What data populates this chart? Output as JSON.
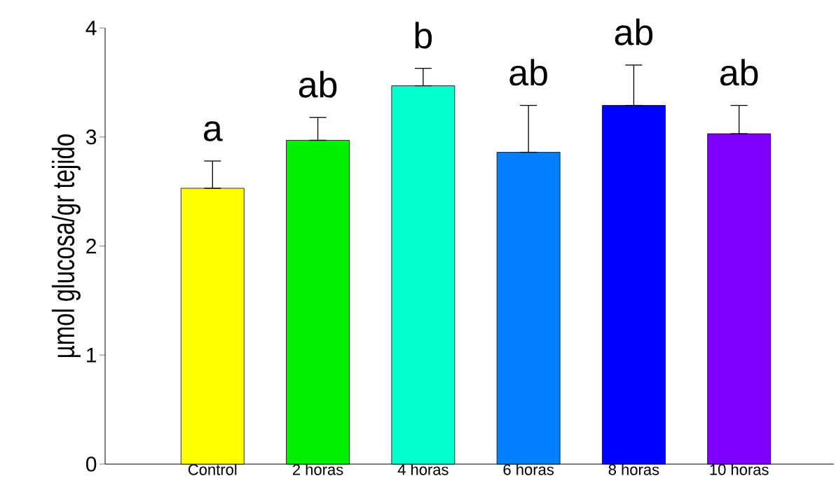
{
  "chart_data": {
    "type": "bar",
    "ylabel": "µmol glucosa/gr tejido",
    "categories": [
      "Control",
      "2 horas",
      "4 horas",
      "6 horas",
      "8 horas",
      "10 horas"
    ],
    "values": [
      2.53,
      2.97,
      3.47,
      2.86,
      3.29,
      3.03
    ],
    "colors": [
      "#ffff00",
      "#00ee00",
      "#00ffcc",
      "#0080ff",
      "#0000ff",
      "#8000ff"
    ],
    "errors": [
      [
        2.53,
        2.78
      ],
      [
        2.97,
        3.18
      ],
      [
        3.47,
        3.63
      ],
      [
        2.86,
        3.29
      ],
      [
        3.29,
        3.66
      ],
      [
        3.03,
        3.29
      ]
    ],
    "ylim": [
      0,
      4
    ],
    "yticks": [
      0,
      1,
      2,
      3,
      4
    ],
    "grid": false,
    "annotations": [
      "a",
      "ab",
      "b",
      "ab",
      "ab",
      "ab"
    ]
  }
}
